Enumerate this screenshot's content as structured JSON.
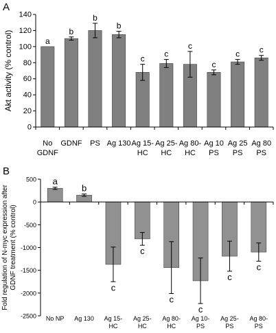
{
  "chart_data": [
    {
      "type": "bar",
      "panel_label": "A",
      "ylabel": "Akt activity (% control)",
      "ylim": [
        0,
        140
      ],
      "yticks": [
        0,
        20,
        40,
        60,
        80,
        100,
        120,
        140
      ],
      "categories": [
        [
          "No",
          "GDNF"
        ],
        [
          "GDNF"
        ],
        [
          "PS"
        ],
        [
          "Ag 130"
        ],
        [
          "Ag 15-",
          "HC"
        ],
        [
          "Ag 25-",
          "HC"
        ],
        [
          "Ag 80-",
          "HC"
        ],
        [
          "Ag 10",
          "PS"
        ],
        [
          "Ag 25",
          "PS"
        ],
        [
          "Ag 80",
          "PS"
        ]
      ],
      "values": [
        100,
        110,
        120,
        115,
        68,
        79,
        78,
        68,
        81,
        86
      ],
      "errors": [
        0,
        2,
        9,
        4,
        10,
        5,
        16,
        3,
        3,
        3
      ],
      "labels": [
        "a",
        "b",
        "b",
        "b",
        "c",
        "c",
        "c",
        "c",
        "c",
        "c"
      ],
      "bar_color": "#808080",
      "grid": false
    },
    {
      "type": "bar",
      "panel_label": "B",
      "ylabel": [
        "Fold regulation of N-myc expression after",
        "GDNF treatment (% control)"
      ],
      "ylim": [
        -2500,
        500
      ],
      "yticks": [
        -2500,
        -2000,
        -1500,
        -1000,
        -500,
        0,
        500
      ],
      "categories": [
        [
          "No NP"
        ],
        [
          "Ag 130"
        ],
        [
          "Ag 15-",
          "HC"
        ],
        [
          "Ag 25-",
          "HC"
        ],
        [
          "Ag 80-",
          "HC"
        ],
        [
          "Ag 10-",
          "PS"
        ],
        [
          "Ag 25-",
          "PS"
        ],
        [
          "Ag 80-",
          "PS"
        ]
      ],
      "values": [
        300,
        150,
        -1370,
        -810,
        -1440,
        -1730,
        -1190,
        -1100
      ],
      "errors": [
        25,
        25,
        380,
        140,
        570,
        500,
        330,
        200
      ],
      "labels": [
        "a",
        "b",
        "c",
        "c",
        "c",
        "c",
        "c",
        "c"
      ],
      "bar_color": "#919191",
      "grid": false
    }
  ]
}
